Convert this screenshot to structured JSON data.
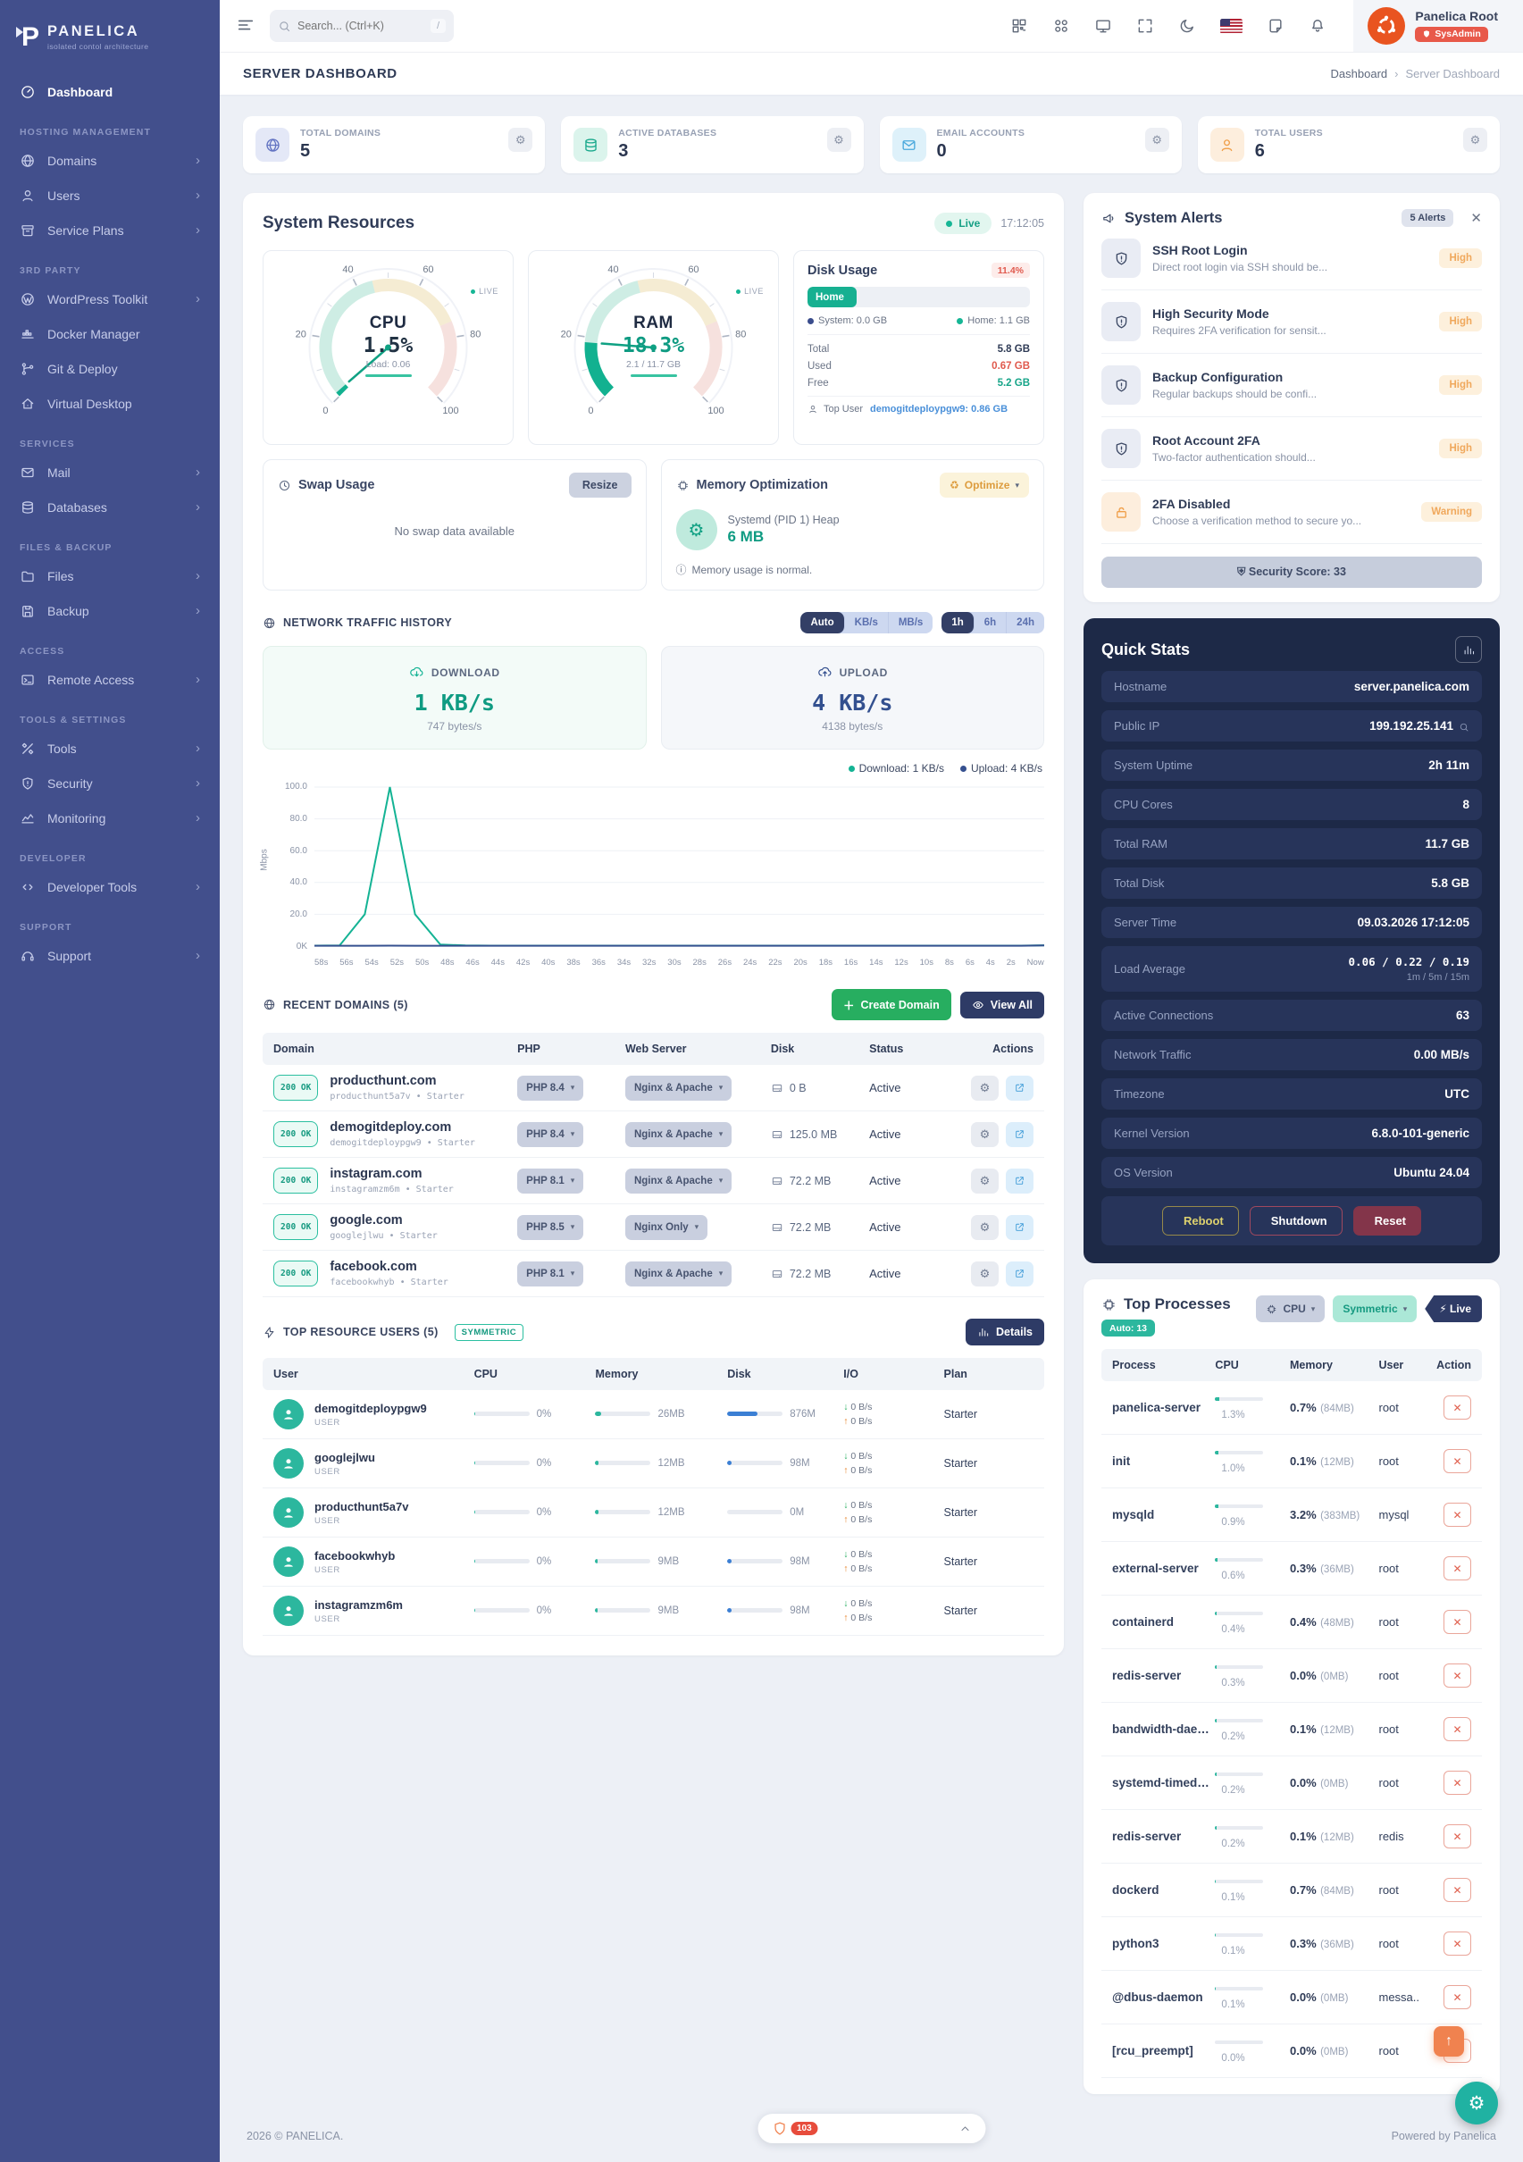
{
  "colors": {
    "accent_teal": "#14b394",
    "accent_navy": "#35508f",
    "sidebar": "#424f8c",
    "danger": "#e05a4e",
    "warning": "#f0a04b",
    "dark_panel": "#1d2947",
    "ubuntu_orange": "#e95420"
  },
  "sidebar": {
    "logo_title": "PANELICA",
    "logo_subtitle": "isolated contol architecture",
    "sections": {
      "hosting": "HOSTING MANAGEMENT",
      "third_party": "3RD PARTY",
      "services": "SERVICES",
      "files_backup": "FILES & BACKUP",
      "access": "ACCESS",
      "tools_settings": "TOOLS & SETTINGS",
      "developer": "DEVELOPER",
      "support": "SUPPORT"
    },
    "items": {
      "dashboard": "Dashboard",
      "domains": "Domains",
      "users": "Users",
      "service_plans": "Service Plans",
      "wordpress": "WordPress Toolkit",
      "docker": "Docker Manager",
      "git": "Git & Deploy",
      "virtual_desktop": "Virtual Desktop",
      "mail": "Mail",
      "databases": "Databases",
      "files": "Files",
      "backup": "Backup",
      "remote_access": "Remote Access",
      "tools": "Tools",
      "security": "Security",
      "monitoring": "Monitoring",
      "developer_tools": "Developer Tools",
      "support": "Support"
    }
  },
  "topbar": {
    "search_placeholder": "Search... (Ctrl+K)",
    "search_key": "/",
    "user": {
      "name": "Panelica Root",
      "badge": "SysAdmin"
    }
  },
  "page": {
    "title": "SERVER DASHBOARD",
    "breadcrumb": {
      "home": "Dashboard",
      "current": "Server Dashboard"
    },
    "footer": {
      "left": "2026 © PANELICA.",
      "right": "Powered by Panelica",
      "shield_count": "103"
    }
  },
  "stat_cards": [
    {
      "label": "TOTAL DOMAINS",
      "value": "5",
      "variant": "indigo"
    },
    {
      "label": "ACTIVE DATABASES",
      "value": "3",
      "variant": "teal"
    },
    {
      "label": "EMAIL ACCOUNTS",
      "value": "0",
      "variant": "blue"
    },
    {
      "label": "TOTAL USERS",
      "value": "6",
      "variant": "orange"
    }
  ],
  "system_resources": {
    "title": "System Resources",
    "live": "Live",
    "time": "17:12:05",
    "live_tag": "LIVE",
    "gauge_ticks": [
      "0",
      "20",
      "40",
      "60",
      "80",
      "100"
    ],
    "cpu": {
      "label": "CPU",
      "value": "1.5%",
      "sub": "Load: 0.06",
      "percent": 1.5
    },
    "ram": {
      "label": "RAM",
      "value": "18.3%",
      "sub": "2.1 / 11.7 GB",
      "percent": 18.3
    },
    "disk": {
      "title": "Disk Usage",
      "badge": "11.4%",
      "bar_label": "Home",
      "bar_percent": 22,
      "legend_system": "System: 0.0 GB",
      "legend_home": "Home: 1.1 GB",
      "total_label": "Total",
      "total": "5.8 GB",
      "used_label": "Used",
      "used": "0.67 GB",
      "free_label": "Free",
      "free": "5.2 GB",
      "top_user_label": "Top User",
      "top_user": "demogitdeploypgw9: 0.86 GB"
    }
  },
  "swap": {
    "title": "Swap Usage",
    "resize": "Resize",
    "empty": "No swap data available"
  },
  "memory_opt": {
    "title": "Memory Optimization",
    "optimize": "Optimize",
    "item_title": "Systemd (PID 1) Heap",
    "item_value": "6 MB",
    "note": "Memory usage is normal."
  },
  "network": {
    "title": "NETWORK TRAFFIC HISTORY",
    "units": [
      "Auto",
      "KB/s",
      "MB/s"
    ],
    "ranges": [
      "1h",
      "6h",
      "24h"
    ],
    "download_label": "DOWNLOAD",
    "download_value": "1 KB/s",
    "download_sub": "747 bytes/s",
    "upload_label": "UPLOAD",
    "upload_value": "4 KB/s",
    "upload_sub": "4138 bytes/s",
    "legend": [
      {
        "label": "Download: 1 KB/s",
        "color": "#14b394"
      },
      {
        "label": "Upload: 4 KB/s",
        "color": "#35508f"
      }
    ]
  },
  "chart_data": {
    "type": "line",
    "title": "Network Traffic History",
    "ylabel": "Mbps",
    "yticks": [
      "100.0",
      "80.0",
      "60.0",
      "40.0",
      "20.0",
      "0K"
    ],
    "ymax": 100,
    "x": [
      "58s",
      "56s",
      "54s",
      "52s",
      "50s",
      "48s",
      "46s",
      "44s",
      "42s",
      "40s",
      "38s",
      "36s",
      "34s",
      "32s",
      "30s",
      "28s",
      "26s",
      "24s",
      "22s",
      "20s",
      "18s",
      "16s",
      "14s",
      "12s",
      "10s",
      "8s",
      "6s",
      "4s",
      "2s",
      "Now"
    ],
    "series": [
      {
        "name": "Download",
        "color": "#14b394",
        "values": [
          0.3,
          0.4,
          20,
          100,
          20,
          1,
          0.4,
          0.3,
          0.3,
          0.3,
          0.3,
          0.3,
          0.3,
          0.3,
          0.3,
          0.3,
          0.3,
          0.3,
          0.3,
          0.3,
          0.3,
          0.3,
          0.3,
          0.3,
          0.3,
          0.3,
          0.3,
          0.3,
          0.3,
          0.5
        ]
      },
      {
        "name": "Upload",
        "color": "#35508f",
        "values": [
          0.2,
          0.2,
          0.2,
          0.3,
          0.2,
          0.2,
          0.2,
          0.2,
          0.2,
          0.2,
          0.2,
          0.2,
          0.2,
          0.2,
          0.2,
          0.2,
          0.2,
          0.2,
          0.2,
          0.2,
          0.2,
          0.2,
          0.2,
          0.2,
          0.2,
          0.2,
          0.2,
          0.2,
          0.2,
          0.4
        ]
      }
    ],
    "legend_position": "top-right",
    "grid": true
  },
  "recent_domains": {
    "title": "RECENT DOMAINS (5)",
    "create_btn": "Create Domain",
    "view_all_btn": "View All",
    "columns": [
      "Domain",
      "PHP",
      "Web Server",
      "Disk",
      "Status",
      "Actions"
    ],
    "rows": [
      {
        "code": "200 OK",
        "domain": "producthunt.com",
        "meta": "producthunt5a7v • Starter",
        "php": "PHP 8.4",
        "server": "Nginx & Apache",
        "disk": "0 B",
        "status": "Active"
      },
      {
        "code": "200 OK",
        "domain": "demogitdeploy.com",
        "meta": "demogitdeploypgw9 • Starter",
        "php": "PHP 8.4",
        "server": "Nginx & Apache",
        "disk": "125.0 MB",
        "status": "Active"
      },
      {
        "code": "200 OK",
        "domain": "instagram.com",
        "meta": "instagramzm6m • Starter",
        "php": "PHP 8.1",
        "server": "Nginx & Apache",
        "disk": "72.2 MB",
        "status": "Active"
      },
      {
        "code": "200 OK",
        "domain": "google.com",
        "meta": "googlejlwu • Starter",
        "php": "PHP 8.5",
        "server": "Nginx Only",
        "disk": "72.2 MB",
        "status": "Active"
      },
      {
        "code": "200 OK",
        "domain": "facebook.com",
        "meta": "facebookwhyb • Starter",
        "php": "PHP 8.1",
        "server": "Nginx & Apache",
        "disk": "72.2 MB",
        "status": "Active"
      }
    ]
  },
  "top_users": {
    "title": "TOP RESOURCE USERS (5)",
    "badge": "SYMMETRIC",
    "details_btn": "Details",
    "columns": [
      "User",
      "CPU",
      "Memory",
      "Disk",
      "I/O",
      "Plan"
    ],
    "rows": [
      {
        "name": "demogitdeploypgw9",
        "role": "USER",
        "cpu": "0%",
        "cpu_fill": 2,
        "memory": "26MB",
        "mem_fill": 10,
        "disk": "876M",
        "disk_fill": 55,
        "down": "0 B/s",
        "up": "0 B/s",
        "plan": "Starter"
      },
      {
        "name": "googlejlwu",
        "role": "USER",
        "cpu": "0%",
        "cpu_fill": 2,
        "memory": "12MB",
        "mem_fill": 5,
        "disk": "98M",
        "disk_fill": 8,
        "down": "0 B/s",
        "up": "0 B/s",
        "plan": "Starter"
      },
      {
        "name": "producthunt5a7v",
        "role": "USER",
        "cpu": "0%",
        "cpu_fill": 2,
        "memory": "12MB",
        "mem_fill": 5,
        "disk": "0M",
        "disk_fill": 0,
        "down": "0 B/s",
        "up": "0 B/s",
        "plan": "Starter"
      },
      {
        "name": "facebookwhyb",
        "role": "USER",
        "cpu": "0%",
        "cpu_fill": 2,
        "memory": "9MB",
        "mem_fill": 4,
        "disk": "98M",
        "disk_fill": 8,
        "down": "0 B/s",
        "up": "0 B/s",
        "plan": "Starter"
      },
      {
        "name": "instagramzm6m",
        "role": "USER",
        "cpu": "0%",
        "cpu_fill": 2,
        "memory": "9MB",
        "mem_fill": 4,
        "disk": "98M",
        "disk_fill": 8,
        "down": "0 B/s",
        "up": "0 B/s",
        "plan": "Starter"
      }
    ]
  },
  "alerts": {
    "title": "System Alerts",
    "count_badge": "5 Alerts",
    "items": [
      {
        "title": "SSH Root Login",
        "desc": "Direct root login via SSH should be...",
        "severity": "High",
        "kind": "shield"
      },
      {
        "title": "High Security Mode",
        "desc": "Requires 2FA verification for sensit...",
        "severity": "High",
        "kind": "shield"
      },
      {
        "title": "Backup Configuration",
        "desc": "Regular backups should be confi...",
        "severity": "High",
        "kind": "shield"
      },
      {
        "title": "Root Account 2FA",
        "desc": "Two-factor authentication should...",
        "severity": "High",
        "kind": "shield"
      },
      {
        "title": "2FA Disabled",
        "desc": "Choose a verification method to secure yo...",
        "severity": "Warning",
        "kind": "unlock"
      }
    ],
    "score": "Security Score: 33"
  },
  "quick_stats": {
    "title": "Quick Stats",
    "rows": [
      {
        "label": "Hostname",
        "value": "server.panelica.com"
      },
      {
        "label": "Public IP",
        "value": "199.192.25.141",
        "variant": "search"
      },
      {
        "label": "System Uptime",
        "value": "2h 11m"
      },
      {
        "label": "CPU Cores",
        "value": "8"
      },
      {
        "label": "Total RAM",
        "value": "11.7 GB"
      },
      {
        "label": "Total Disk",
        "value": "5.8 GB"
      },
      {
        "label": "Server Time",
        "value": "09.03.2026 17:12:05"
      },
      {
        "label": "Load Average",
        "value": "0.06 / 0.22 / 0.19",
        "sub": "1m / 5m / 15m",
        "variant": "mono"
      },
      {
        "label": "Active Connections",
        "value": "63"
      },
      {
        "label": "Network Traffic",
        "value": "0.00 MB/s"
      },
      {
        "label": "Timezone",
        "value": "UTC"
      },
      {
        "label": "Kernel Version",
        "value": "6.8.0-101-generic"
      },
      {
        "label": "OS Version",
        "value": "Ubuntu 24.04"
      }
    ],
    "buttons": {
      "reboot": "Reboot",
      "shutdown": "Shutdown",
      "reset": "Reset"
    }
  },
  "top_processes": {
    "title": "Top Processes",
    "auto_badge": "Auto: 13",
    "cpu_dropdown": "CPU",
    "mode_dropdown": "Symmetric",
    "live_badge": "Live",
    "columns": [
      "Process",
      "CPU",
      "Memory",
      "User",
      "Action"
    ],
    "rows": [
      {
        "name": "panelica-server",
        "cpu": "1.3%",
        "cpu_fill": 8,
        "mem": "0.7%",
        "mem_mb": "(84MB)",
        "user": "root"
      },
      {
        "name": "init",
        "cpu": "1.0%",
        "cpu_fill": 6,
        "mem": "0.1%",
        "mem_mb": "(12MB)",
        "user": "root"
      },
      {
        "name": "mysqld",
        "cpu": "0.9%",
        "cpu_fill": 6,
        "mem": "3.2%",
        "mem_mb": "(383MB)",
        "user": "mysql"
      },
      {
        "name": "external-server",
        "cpu": "0.6%",
        "cpu_fill": 4,
        "mem": "0.3%",
        "mem_mb": "(36MB)",
        "user": "root"
      },
      {
        "name": "containerd",
        "cpu": "0.4%",
        "cpu_fill": 3,
        "mem": "0.4%",
        "mem_mb": "(48MB)",
        "user": "root"
      },
      {
        "name": "redis-server",
        "cpu": "0.3%",
        "cpu_fill": 2,
        "mem": "0.0%",
        "mem_mb": "(0MB)",
        "user": "root"
      },
      {
        "name": "bandwidth-dae…",
        "cpu": "0.2%",
        "cpu_fill": 2,
        "mem": "0.1%",
        "mem_mb": "(12MB)",
        "user": "root"
      },
      {
        "name": "systemd-timed…",
        "cpu": "0.2%",
        "cpu_fill": 2,
        "mem": "0.0%",
        "mem_mb": "(0MB)",
        "user": "root"
      },
      {
        "name": "redis-server",
        "cpu": "0.2%",
        "cpu_fill": 2,
        "mem": "0.1%",
        "mem_mb": "(12MB)",
        "user": "redis"
      },
      {
        "name": "dockerd",
        "cpu": "0.1%",
        "cpu_fill": 1,
        "mem": "0.7%",
        "mem_mb": "(84MB)",
        "user": "root"
      },
      {
        "name": "python3",
        "cpu": "0.1%",
        "cpu_fill": 1,
        "mem": "0.3%",
        "mem_mb": "(36MB)",
        "user": "root"
      },
      {
        "name": "@dbus-daemon",
        "cpu": "0.1%",
        "cpu_fill": 1,
        "mem": "0.0%",
        "mem_mb": "(0MB)",
        "user": "messa.."
      },
      {
        "name": "[rcu_preempt]",
        "cpu": "0.0%",
        "cpu_fill": 0,
        "mem": "0.0%",
        "mem_mb": "(0MB)",
        "user": "root"
      }
    ]
  }
}
